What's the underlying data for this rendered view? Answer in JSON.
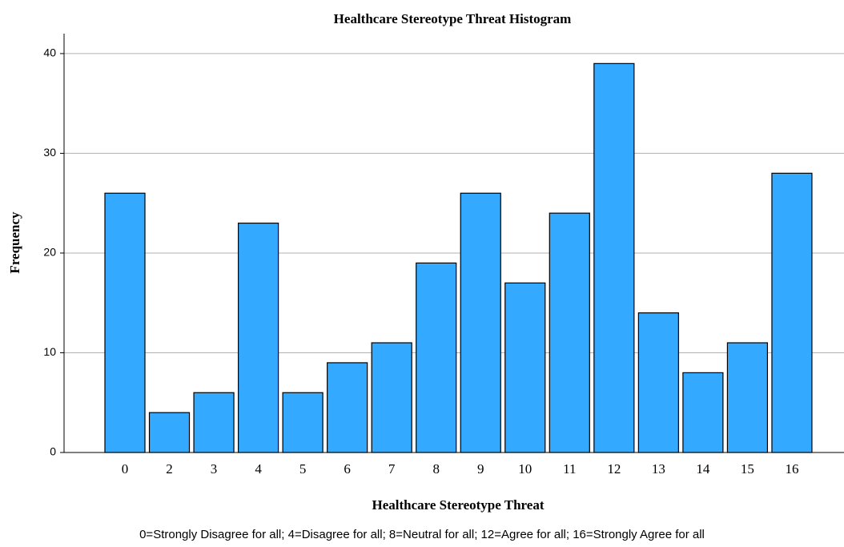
{
  "chart_data": {
    "type": "bar",
    "title": "Healthcare Stereotype Threat Histogram",
    "x_label": "Healthcare Stereotype Threat",
    "y_label": "Frequency",
    "footnote": "0=Strongly Disagree for all; 4=Disagree for all; 8=Neutral for all; 12=Agree for all; 16=Strongly Agree for all",
    "categories": [
      "0",
      "2",
      "3",
      "4",
      "5",
      "6",
      "7",
      "8",
      "9",
      "10",
      "11",
      "12",
      "13",
      "14",
      "15",
      "16"
    ],
    "values": [
      26,
      4,
      6,
      23,
      6,
      9,
      11,
      19,
      26,
      17,
      24,
      39,
      14,
      8,
      11,
      28
    ],
    "color": "#33aaff",
    "ylim": [
      0,
      42
    ],
    "yticks": [
      0,
      10,
      20,
      30,
      40
    ],
    "grid": true
  }
}
